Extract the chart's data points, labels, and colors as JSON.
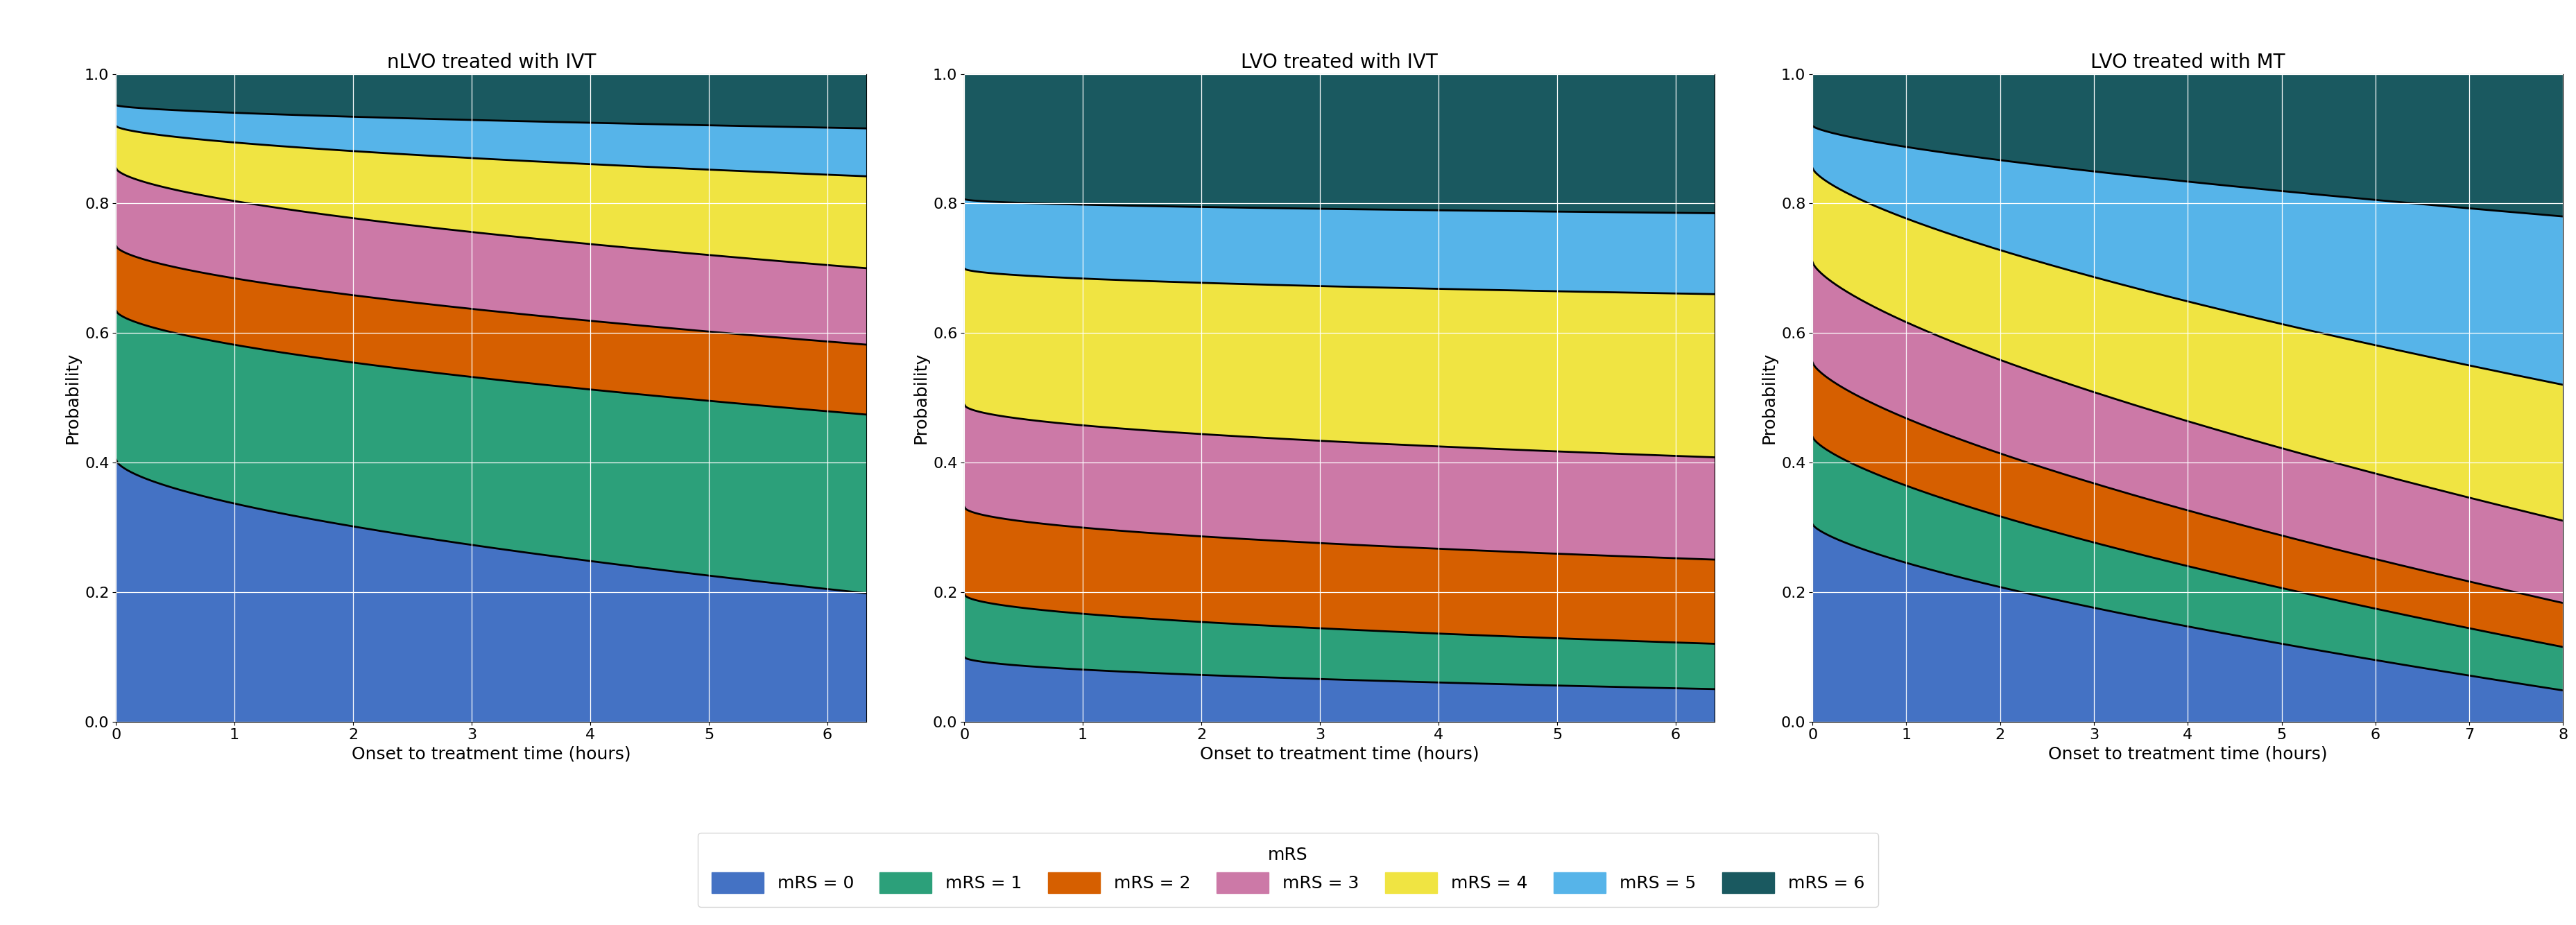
{
  "titles": [
    "nLVO treated with IVT",
    "LVO treated with IVT",
    "LVO treated with MT"
  ],
  "xlabel": "Onset to treatment time (hours)",
  "ylabel": "Probability",
  "legend_title": "mRS",
  "colors": [
    "#4472c4",
    "#2ca07a",
    "#d65f00",
    "#cc79a7",
    "#f0e442",
    "#56b4e9",
    "#1a5960"
  ],
  "mrs_labels": [
    "mRS = 0",
    "mRS = 1",
    "mRS = 2",
    "mRS = 3",
    "mRS = 4",
    "mRS = 5",
    "mRS = 6"
  ],
  "subplots": [
    {
      "title": "nLVO treated with IVT",
      "xlim": [
        0,
        6.33
      ],
      "xticks": [
        0,
        1,
        2,
        3,
        4,
        5,
        6
      ],
      "boundaries_start": [
        0.405,
        0.635,
        0.735,
        0.855,
        0.92,
        0.952,
        1.0
      ],
      "boundaries_end": [
        0.198,
        0.474,
        0.582,
        0.7,
        0.842,
        0.916,
        1.0
      ],
      "concavity": 0.6
    },
    {
      "title": "LVO treated with IVT",
      "xlim": [
        0,
        6.33
      ],
      "xticks": [
        0,
        1,
        2,
        3,
        4,
        5,
        6
      ],
      "boundaries_start": [
        0.1,
        0.197,
        0.332,
        0.49,
        0.7,
        0.807,
        1.0
      ],
      "boundaries_end": [
        0.05,
        0.12,
        0.25,
        0.408,
        0.66,
        0.785,
        1.0
      ],
      "concavity": 0.5
    },
    {
      "title": "LVO treated with MT",
      "xlim": [
        0,
        8.0
      ],
      "xticks": [
        0,
        1,
        2,
        3,
        4,
        5,
        6,
        7,
        8
      ],
      "boundaries_start": [
        0.305,
        0.44,
        0.555,
        0.71,
        0.855,
        0.92,
        1.0
      ],
      "boundaries_end": [
        0.048,
        0.115,
        0.183,
        0.31,
        0.52,
        0.78,
        1.0
      ],
      "concavity": 0.7
    }
  ]
}
